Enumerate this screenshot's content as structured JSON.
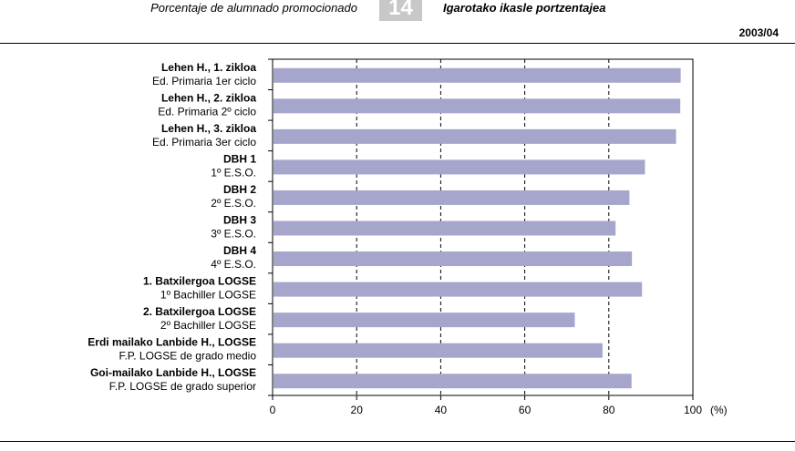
{
  "header": {
    "title_es": "Porcentaje de alumnado promocionado",
    "number": "14",
    "title_eu": "Igarotako ikasle portzentajea",
    "year": "2003/04"
  },
  "colors": {
    "bar": "#a6a6cc",
    "axis": "#000000",
    "grid": "#000000"
  },
  "chart_data": {
    "type": "bar",
    "orientation": "horizontal",
    "title": "",
    "xlabel": "(%)",
    "ylabel": "",
    "xlim": [
      0,
      100
    ],
    "xticks": [
      0,
      20,
      40,
      60,
      80,
      100
    ],
    "grid": "vertical dashed",
    "categories": [
      {
        "eu": "Lehen H., 1. zikloa",
        "es": "Ed. Primaria 1er ciclo"
      },
      {
        "eu": "Lehen H., 2. zikloa",
        "es": "Ed. Primaria 2º ciclo"
      },
      {
        "eu": "Lehen H., 3. zikloa",
        "es": "Ed. Primaria 3er ciclo"
      },
      {
        "eu": "DBH 1",
        "es": "1º E.S.O."
      },
      {
        "eu": "DBH 2",
        "es": "2º E.S.O."
      },
      {
        "eu": "DBH 3",
        "es": "3º E.S.O."
      },
      {
        "eu": "DBH 4",
        "es": "4º E.S.O."
      },
      {
        "eu": "1. Batxilergoa LOGSE",
        "es": "1º Bachiller LOGSE"
      },
      {
        "eu": "2. Batxilergoa LOGSE",
        "es": "2º Bachiller LOGSE"
      },
      {
        "eu": "Erdi mailako Lanbide H., LOGSE",
        "es": "F.P. LOGSE de grado medio"
      },
      {
        "eu": "Goi-mailako Lanbide H., LOGSE",
        "es": "F.P. LOGSE de grado superior"
      }
    ],
    "values": [
      97.1,
      97.0,
      96.0,
      88.6,
      84.9,
      81.6,
      85.5,
      87.9,
      71.9,
      78.5,
      85.4
    ]
  }
}
